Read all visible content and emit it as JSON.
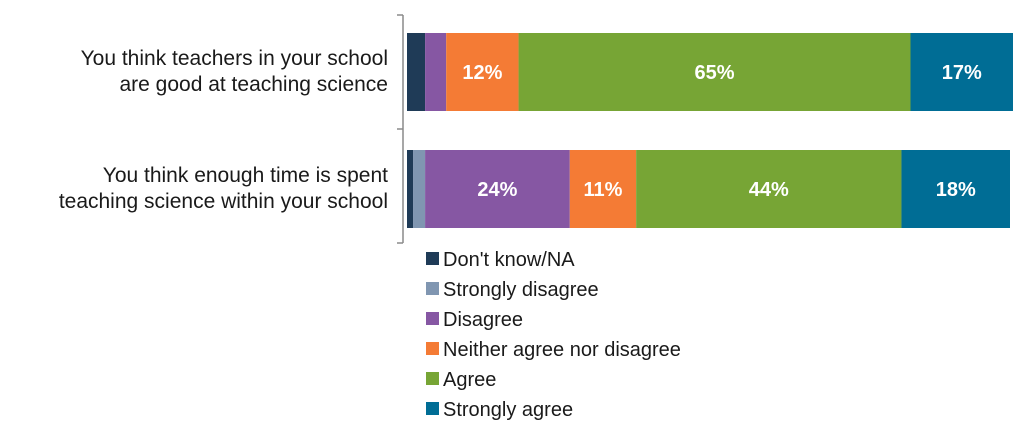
{
  "chart_data": {
    "type": "bar",
    "orientation": "horizontal",
    "stacked": true,
    "normalized": true,
    "title": "",
    "xlabel": "",
    "ylabel": "",
    "xlim": [
      0,
      100
    ],
    "grid": false,
    "legend_position": "bottom",
    "categories": [
      [
        "You think teachers in your school",
        "are good at teaching science"
      ],
      [
        "You think enough time is spent",
        "teaching science within your school"
      ]
    ],
    "series": [
      {
        "name": "Don't know/NA",
        "color": "#1f3b57",
        "values": [
          3,
          1
        ],
        "labels": [
          "",
          ""
        ]
      },
      {
        "name": "Strongly disagree",
        "color": "#8096b1",
        "values": [
          0,
          2
        ],
        "labels": [
          "",
          ""
        ]
      },
      {
        "name": "Disagree",
        "color": "#8657a3",
        "values": [
          3.5,
          24
        ],
        "labels": [
          "",
          "24%"
        ]
      },
      {
        "name": "Neither agree nor disagree",
        "color": "#f47b35",
        "values": [
          12,
          11
        ],
        "labels": [
          "12%",
          "11%"
        ]
      },
      {
        "name": "Agree",
        "color": "#77a535",
        "values": [
          65,
          44
        ],
        "labels": [
          "65%",
          "44%"
        ]
      },
      {
        "name": "Strongly agree",
        "color": "#006d95",
        "values": [
          17,
          18
        ],
        "labels": [
          "17%",
          "18%"
        ]
      }
    ]
  }
}
